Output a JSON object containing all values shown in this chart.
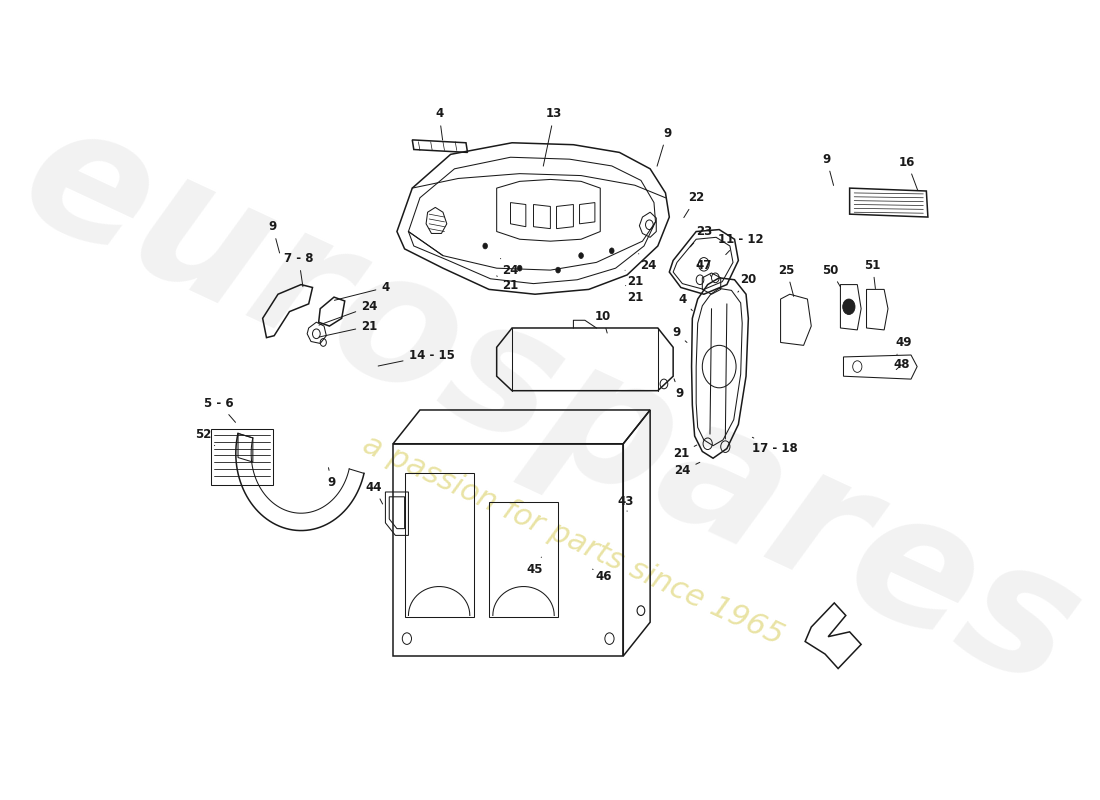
{
  "bg_color": "#ffffff",
  "line_color": "#1a1a1a",
  "wm1": "eurospares",
  "wm2": "a passion for parts since 1965",
  "wm_color": "#cccccc",
  "wm_yellow": "#d4c84a"
}
